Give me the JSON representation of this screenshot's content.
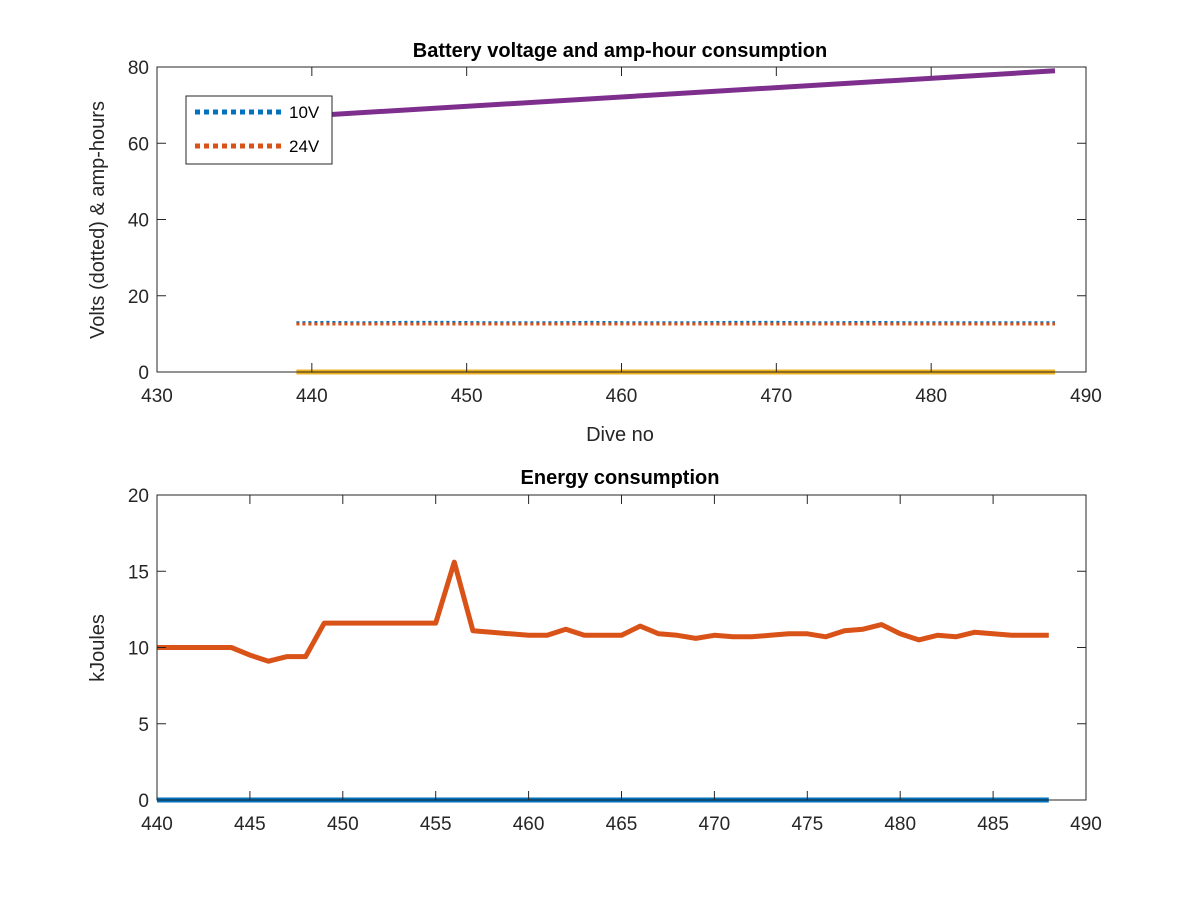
{
  "chart_data": [
    {
      "type": "line",
      "title": "Battery voltage and amp-hour consumption",
      "xlabel": "Dive no",
      "ylabel": "Volts (dotted) & amp-hours",
      "xlim": [
        430,
        490
      ],
      "ylim": [
        0,
        80
      ],
      "xticks": [
        430,
        440,
        450,
        460,
        470,
        480,
        490
      ],
      "yticks": [
        0,
        20,
        40,
        60,
        80
      ],
      "grid": false,
      "legend": {
        "placement": "top-left",
        "entries": [
          "10V",
          "24V"
        ]
      },
      "series": [
        {
          "name": "10V",
          "style": "dotted",
          "color": "#0072BD",
          "x": [
            439,
            441,
            443,
            446,
            449,
            452,
            455,
            458,
            461,
            464,
            467,
            470,
            473,
            476,
            479,
            482,
            485,
            488
          ],
          "y": [
            12.9,
            13.0,
            12.9,
            13.0,
            13.0,
            12.9,
            12.9,
            13.0,
            12.9,
            12.9,
            13.0,
            13.0,
            12.9,
            13.0,
            12.9,
            12.9,
            12.9,
            12.9
          ]
        },
        {
          "name": "24V",
          "style": "dotted",
          "color": "#D95319",
          "x": [
            439,
            441,
            443,
            446,
            449,
            452,
            455,
            458,
            461,
            464,
            467,
            470,
            473,
            476,
            479,
            482,
            485,
            488
          ],
          "y": [
            12.6,
            12.6,
            12.6,
            12.6,
            12.6,
            12.6,
            12.6,
            12.6,
            12.6,
            12.6,
            12.6,
            12.6,
            12.6,
            12.6,
            12.6,
            12.6,
            12.6,
            12.6
          ]
        },
        {
          "style": "solid",
          "color": "#EDB120",
          "x": [
            439,
            488
          ],
          "y": [
            0,
            0
          ]
        },
        {
          "style": "solid",
          "color": "#7E2F8E",
          "x": [
            439,
            488
          ],
          "y": [
            67,
            79
          ]
        }
      ]
    },
    {
      "type": "line",
      "title": "Energy consumption",
      "xlabel": "",
      "ylabel": "kJoules",
      "xlim": [
        440,
        490
      ],
      "ylim": [
        0,
        20
      ],
      "xticks": [
        440,
        445,
        450,
        455,
        460,
        465,
        470,
        475,
        480,
        485,
        490
      ],
      "yticks": [
        0,
        5,
        10,
        15,
        20
      ],
      "grid": false,
      "series": [
        {
          "style": "solid",
          "color": "#D95319",
          "x": [
            440,
            441,
            442,
            443,
            444,
            445,
            446,
            447,
            448,
            449,
            450,
            451,
            452,
            453,
            454,
            455,
            456,
            457,
            458,
            459,
            460,
            461,
            462,
            463,
            464,
            465,
            466,
            467,
            468,
            469,
            470,
            471,
            472,
            473,
            474,
            475,
            476,
            477,
            478,
            479,
            480,
            481,
            482,
            483,
            484,
            485,
            486,
            487,
            488
          ],
          "y": [
            10.0,
            10.0,
            10.0,
            10.0,
            10.0,
            9.5,
            9.1,
            9.4,
            9.4,
            11.6,
            11.6,
            11.6,
            11.6,
            11.6,
            11.6,
            11.6,
            15.6,
            11.1,
            11.0,
            10.9,
            10.8,
            10.8,
            11.2,
            10.8,
            10.8,
            10.8,
            11.4,
            10.9,
            10.8,
            10.6,
            10.8,
            10.7,
            10.7,
            10.8,
            10.9,
            10.9,
            10.7,
            11.1,
            11.2,
            11.5,
            10.9,
            10.5,
            10.8,
            10.7,
            11.0,
            10.9,
            10.8,
            10.8,
            10.8
          ]
        },
        {
          "style": "solid",
          "color": "#0072BD",
          "x": [
            440,
            488
          ],
          "y": [
            0,
            0
          ]
        }
      ]
    }
  ]
}
